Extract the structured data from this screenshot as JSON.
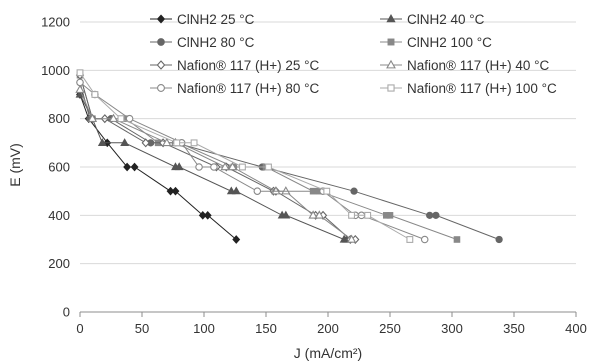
{
  "chart_data": {
    "type": "line",
    "title": "",
    "xlabel": "J (mA/cm²)",
    "ylabel": "E (mV)",
    "xlim": [
      0,
      400
    ],
    "ylim": [
      0,
      1200
    ],
    "x_ticks": [
      0,
      50,
      100,
      150,
      200,
      250,
      300,
      350,
      400
    ],
    "y_ticks": [
      0,
      200,
      400,
      600,
      800,
      1000,
      1200
    ],
    "grid": "horizontal",
    "legend_position": "top-inside-two-columns",
    "series": [
      {
        "name": "ClNH2 25 °C",
        "marker": "diamond",
        "filled": true,
        "color": "#222222",
        "points": [
          [
            0,
            900
          ],
          [
            7,
            800
          ],
          [
            22,
            700
          ],
          [
            38,
            600
          ],
          [
            44,
            600
          ],
          [
            73,
            500
          ],
          [
            77,
            500
          ],
          [
            99,
            400
          ],
          [
            103,
            400
          ],
          [
            126,
            300
          ]
        ]
      },
      {
        "name": "ClNH2 40 °C",
        "marker": "triangle",
        "filled": true,
        "color": "#555555",
        "points": [
          [
            0,
            900
          ],
          [
            10,
            800
          ],
          [
            18,
            700
          ],
          [
            36,
            700
          ],
          [
            77,
            600
          ],
          [
            80,
            600
          ],
          [
            122,
            500
          ],
          [
            126,
            500
          ],
          [
            163,
            400
          ],
          [
            166,
            400
          ],
          [
            213,
            300
          ],
          [
            215,
            300
          ]
        ]
      },
      {
        "name": "ClNH2 80 °C",
        "marker": "circle",
        "filled": true,
        "color": "#666666",
        "points": [
          [
            0,
            950
          ],
          [
            8,
            800
          ],
          [
            25,
            800
          ],
          [
            57,
            700
          ],
          [
            77,
            700
          ],
          [
            147,
            600
          ],
          [
            148,
            600
          ],
          [
            221,
            500
          ],
          [
            282,
            400
          ],
          [
            287,
            400
          ],
          [
            338,
            300
          ]
        ]
      },
      {
        "name": "ClNH2 100 °C",
        "marker": "square",
        "filled": true,
        "color": "#888888",
        "points": [
          [
            0,
            980
          ],
          [
            10,
            800
          ],
          [
            37,
            800
          ],
          [
            63,
            700
          ],
          [
            80,
            700
          ],
          [
            124,
            600
          ],
          [
            150,
            600
          ],
          [
            188,
            500
          ],
          [
            193,
            500
          ],
          [
            247,
            400
          ],
          [
            250,
            400
          ],
          [
            304,
            300
          ]
        ]
      },
      {
        "name": "Nafion® 117 (H+) 25 °C",
        "marker": "diamond",
        "filled": false,
        "color": "#666666",
        "points": [
          [
            0,
            980
          ],
          [
            10,
            800
          ],
          [
            20,
            800
          ],
          [
            53,
            700
          ],
          [
            67,
            700
          ],
          [
            110,
            600
          ],
          [
            118,
            600
          ],
          [
            156,
            500
          ],
          [
            158,
            500
          ],
          [
            190,
            400
          ],
          [
            196,
            400
          ],
          [
            218,
            300
          ],
          [
            222,
            300
          ]
        ]
      },
      {
        "name": "Nafion® 117 (H+) 40 °C",
        "marker": "triangle",
        "filled": false,
        "color": "#888888",
        "points": [
          [
            0,
            920
          ],
          [
            10,
            800
          ],
          [
            27,
            800
          ],
          [
            70,
            700
          ],
          [
            77,
            700
          ],
          [
            117,
            600
          ],
          [
            123,
            600
          ],
          [
            158,
            500
          ],
          [
            166,
            500
          ],
          [
            188,
            400
          ],
          [
            193,
            400
          ],
          [
            219,
            300
          ]
        ]
      },
      {
        "name": "Nafion® 117 (H+) 80 °C",
        "marker": "circle",
        "filled": false,
        "color": "#888888",
        "points": [
          [
            0,
            950
          ],
          [
            12,
            900
          ],
          [
            40,
            800
          ],
          [
            82,
            700
          ],
          [
            96,
            600
          ],
          [
            108,
            600
          ],
          [
            143,
            500
          ],
          [
            196,
            500
          ],
          [
            222,
            400
          ],
          [
            227,
            400
          ],
          [
            278,
            300
          ]
        ]
      },
      {
        "name": "Nafion® 117 (H+) 100 °C",
        "marker": "square",
        "filled": false,
        "color": "#aaaaaa",
        "points": [
          [
            0,
            990
          ],
          [
            12,
            900
          ],
          [
            33,
            800
          ],
          [
            78,
            700
          ],
          [
            92,
            700
          ],
          [
            131,
            600
          ],
          [
            152,
            600
          ],
          [
            199,
            500
          ],
          [
            219,
            400
          ],
          [
            232,
            400
          ],
          [
            266,
            300
          ]
        ]
      }
    ]
  }
}
